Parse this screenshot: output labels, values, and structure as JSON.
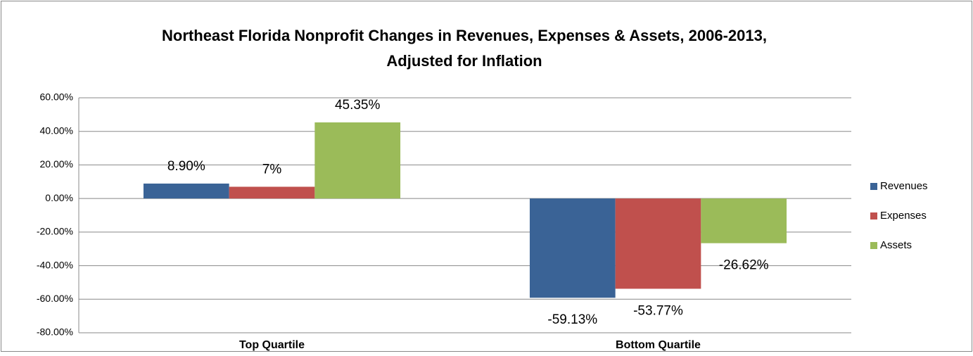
{
  "chart_data": {
    "type": "bar",
    "title": [
      "Northeast Florida Nonprofit Changes in Revenues, Expenses & Assets, 2006-2013,",
      "Adjusted for Inflation"
    ],
    "categories": [
      "Top Quartile",
      "Bottom Quartile"
    ],
    "series": [
      {
        "name": "Revenues",
        "color": "#3a6396",
        "values": [
          8.9,
          -59.13
        ],
        "value_labels": [
          "8.90%",
          "-59.13%"
        ]
      },
      {
        "name": "Expenses",
        "color": "#c0504d",
        "values": [
          7,
          -53.77
        ],
        "value_labels": [
          "7%",
          "-53.77%"
        ]
      },
      {
        "name": "Assets",
        "color": "#9bbb59",
        "values": [
          45.35,
          -26.62
        ],
        "value_labels": [
          "45.35%",
          "-26.62%"
        ]
      }
    ],
    "ylim": [
      -80,
      60
    ],
    "yticks": [
      {
        "value": -80,
        "label": "-80.00%"
      },
      {
        "value": -60,
        "label": "-60.00%"
      },
      {
        "value": -40,
        "label": "-40.00%"
      },
      {
        "value": -20,
        "label": "-20.00%"
      },
      {
        "value": 0,
        "label": "0.00%"
      },
      {
        "value": 20,
        "label": "20.00%"
      },
      {
        "value": 40,
        "label": "40.00%"
      },
      {
        "value": 60,
        "label": "60.00%"
      }
    ],
    "grid": true,
    "legend": "right"
  }
}
